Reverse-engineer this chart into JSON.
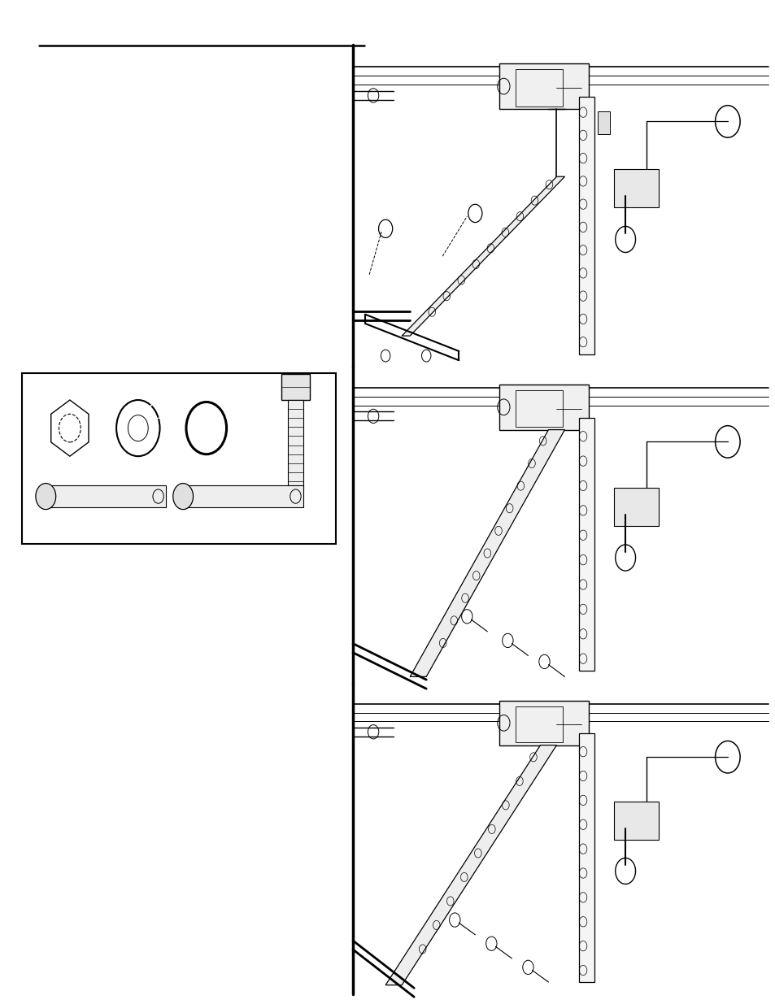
{
  "bg_color": "#ffffff",
  "line_color": "#000000",
  "page_width": 9.54,
  "page_height": 12.35
}
